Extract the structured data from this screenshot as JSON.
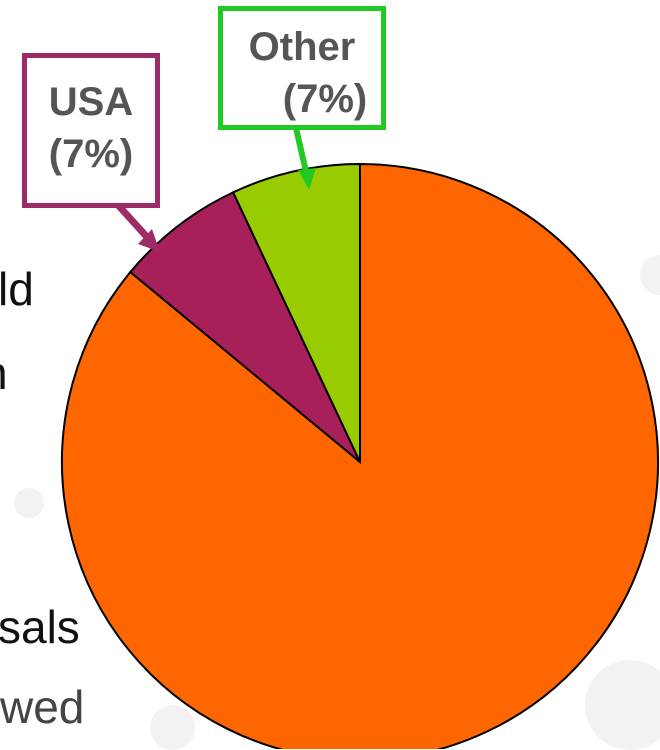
{
  "background_text": {
    "frag_1": "ld",
    "frag_2": "n",
    "frag_3": "sals",
    "frag_4": "wed"
  },
  "chart_data": {
    "type": "pie",
    "title": "",
    "start_angle_deg": 0,
    "direction": "clockwise",
    "slices": [
      {
        "name": "",
        "value": 86,
        "color": "#ff6600",
        "label": ""
      },
      {
        "name": "USA",
        "value": 7,
        "color": "#a8205a",
        "label": "USA",
        "pct_label": "(7%)"
      },
      {
        "name": "Other",
        "value": 7,
        "color": "#99cc00",
        "label": "Other",
        "pct_label": "(7%)"
      }
    ],
    "callouts": {
      "usa": {
        "label": "USA",
        "pct": "(7%)",
        "border_color": "#9b2c67"
      },
      "other": {
        "label": "Other",
        "pct": "(7%)",
        "border_color": "#22c922"
      }
    }
  }
}
